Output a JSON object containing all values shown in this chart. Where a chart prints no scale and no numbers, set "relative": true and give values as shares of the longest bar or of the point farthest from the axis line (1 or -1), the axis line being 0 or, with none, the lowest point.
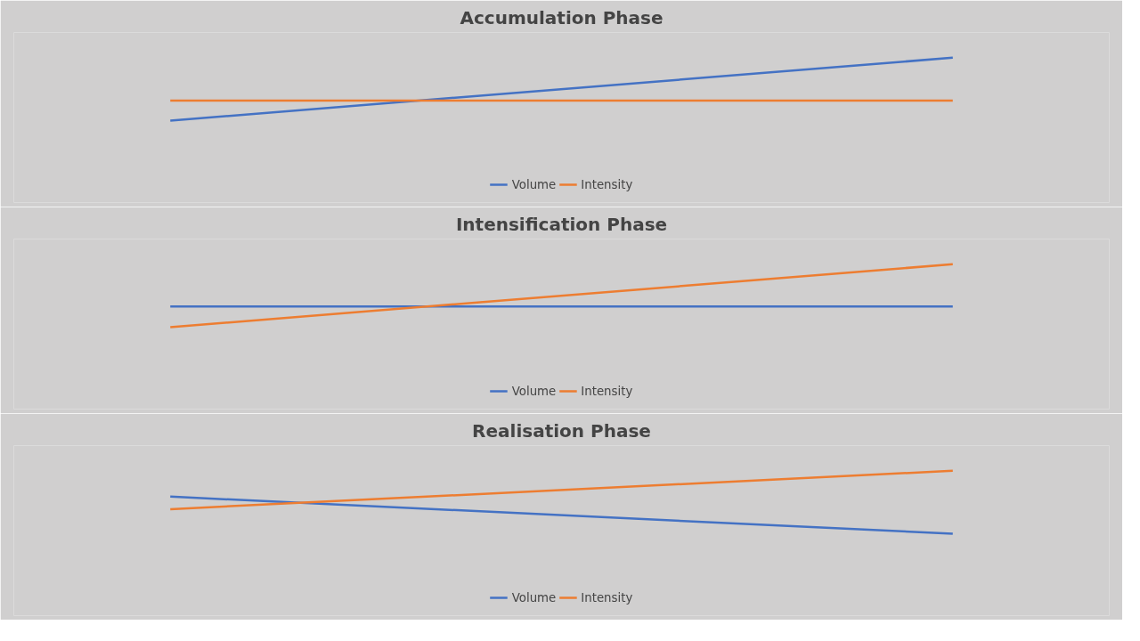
{
  "chart_data": [
    {
      "type": "line",
      "title": "Accumulation Phase",
      "categories": [
        null,
        null
      ],
      "relative": true,
      "legend": "bottom",
      "series": [
        {
          "name": "Volume",
          "color": "#4472c4",
          "values": [
            0,
            1
          ]
        },
        {
          "name": "Intensity",
          "color": "#ed7d31",
          "values": [
            0.32,
            0.32
          ]
        }
      ]
    },
    {
      "type": "line",
      "title": "Intensification Phase",
      "categories": [
        null,
        null
      ],
      "relative": true,
      "legend": "bottom",
      "series": [
        {
          "name": "Volume",
          "color": "#4472c4",
          "values": [
            0.33,
            0.33
          ]
        },
        {
          "name": "Intensity",
          "color": "#ed7d31",
          "values": [
            0,
            1
          ]
        }
      ]
    },
    {
      "type": "line",
      "title": "Realisation Phase",
      "categories": [
        null,
        null
      ],
      "relative": true,
      "legend": "bottom",
      "series": [
        {
          "name": "Volume",
          "color": "#4472c4",
          "values": [
            0.59,
            0
          ]
        },
        {
          "name": "Intensity",
          "color": "#ed7d31",
          "values": [
            0.39,
            1
          ]
        }
      ]
    }
  ]
}
